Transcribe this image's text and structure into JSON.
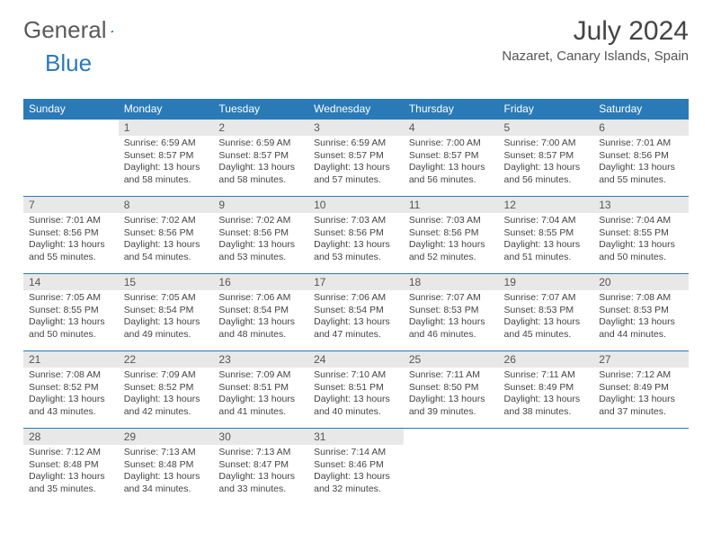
{
  "logo": {
    "text_a": "General",
    "text_b": "Blue"
  },
  "title": "July 2024",
  "location": "Nazaret, Canary Islands, Spain",
  "weekdays": [
    "Sunday",
    "Monday",
    "Tuesday",
    "Wednesday",
    "Thursday",
    "Friday",
    "Saturday"
  ],
  "colors": {
    "header_bg": "#2a7ab8",
    "header_fg": "#ffffff",
    "daynum_bg": "#e8e8e8",
    "border": "#2a7ab8",
    "text": "#444444"
  },
  "fonts": {
    "title_size": 30,
    "location_size": 15,
    "dayhead_size": 12,
    "cell_size": 10.5
  },
  "days": [
    {
      "n": "",
      "sr": "",
      "ss": "",
      "dl": ""
    },
    {
      "n": "1",
      "sr": "6:59 AM",
      "ss": "8:57 PM",
      "dl": "13 hours and 58 minutes."
    },
    {
      "n": "2",
      "sr": "6:59 AM",
      "ss": "8:57 PM",
      "dl": "13 hours and 58 minutes."
    },
    {
      "n": "3",
      "sr": "6:59 AM",
      "ss": "8:57 PM",
      "dl": "13 hours and 57 minutes."
    },
    {
      "n": "4",
      "sr": "7:00 AM",
      "ss": "8:57 PM",
      "dl": "13 hours and 56 minutes."
    },
    {
      "n": "5",
      "sr": "7:00 AM",
      "ss": "8:57 PM",
      "dl": "13 hours and 56 minutes."
    },
    {
      "n": "6",
      "sr": "7:01 AM",
      "ss": "8:56 PM",
      "dl": "13 hours and 55 minutes."
    },
    {
      "n": "7",
      "sr": "7:01 AM",
      "ss": "8:56 PM",
      "dl": "13 hours and 55 minutes."
    },
    {
      "n": "8",
      "sr": "7:02 AM",
      "ss": "8:56 PM",
      "dl": "13 hours and 54 minutes."
    },
    {
      "n": "9",
      "sr": "7:02 AM",
      "ss": "8:56 PM",
      "dl": "13 hours and 53 minutes."
    },
    {
      "n": "10",
      "sr": "7:03 AM",
      "ss": "8:56 PM",
      "dl": "13 hours and 53 minutes."
    },
    {
      "n": "11",
      "sr": "7:03 AM",
      "ss": "8:56 PM",
      "dl": "13 hours and 52 minutes."
    },
    {
      "n": "12",
      "sr": "7:04 AM",
      "ss": "8:55 PM",
      "dl": "13 hours and 51 minutes."
    },
    {
      "n": "13",
      "sr": "7:04 AM",
      "ss": "8:55 PM",
      "dl": "13 hours and 50 minutes."
    },
    {
      "n": "14",
      "sr": "7:05 AM",
      "ss": "8:55 PM",
      "dl": "13 hours and 50 minutes."
    },
    {
      "n": "15",
      "sr": "7:05 AM",
      "ss": "8:54 PM",
      "dl": "13 hours and 49 minutes."
    },
    {
      "n": "16",
      "sr": "7:06 AM",
      "ss": "8:54 PM",
      "dl": "13 hours and 48 minutes."
    },
    {
      "n": "17",
      "sr": "7:06 AM",
      "ss": "8:54 PM",
      "dl": "13 hours and 47 minutes."
    },
    {
      "n": "18",
      "sr": "7:07 AM",
      "ss": "8:53 PM",
      "dl": "13 hours and 46 minutes."
    },
    {
      "n": "19",
      "sr": "7:07 AM",
      "ss": "8:53 PM",
      "dl": "13 hours and 45 minutes."
    },
    {
      "n": "20",
      "sr": "7:08 AM",
      "ss": "8:53 PM",
      "dl": "13 hours and 44 minutes."
    },
    {
      "n": "21",
      "sr": "7:08 AM",
      "ss": "8:52 PM",
      "dl": "13 hours and 43 minutes."
    },
    {
      "n": "22",
      "sr": "7:09 AM",
      "ss": "8:52 PM",
      "dl": "13 hours and 42 minutes."
    },
    {
      "n": "23",
      "sr": "7:09 AM",
      "ss": "8:51 PM",
      "dl": "13 hours and 41 minutes."
    },
    {
      "n": "24",
      "sr": "7:10 AM",
      "ss": "8:51 PM",
      "dl": "13 hours and 40 minutes."
    },
    {
      "n": "25",
      "sr": "7:11 AM",
      "ss": "8:50 PM",
      "dl": "13 hours and 39 minutes."
    },
    {
      "n": "26",
      "sr": "7:11 AM",
      "ss": "8:49 PM",
      "dl": "13 hours and 38 minutes."
    },
    {
      "n": "27",
      "sr": "7:12 AM",
      "ss": "8:49 PM",
      "dl": "13 hours and 37 minutes."
    },
    {
      "n": "28",
      "sr": "7:12 AM",
      "ss": "8:48 PM",
      "dl": "13 hours and 35 minutes."
    },
    {
      "n": "29",
      "sr": "7:13 AM",
      "ss": "8:48 PM",
      "dl": "13 hours and 34 minutes."
    },
    {
      "n": "30",
      "sr": "7:13 AM",
      "ss": "8:47 PM",
      "dl": "13 hours and 33 minutes."
    },
    {
      "n": "31",
      "sr": "7:14 AM",
      "ss": "8:46 PM",
      "dl": "13 hours and 32 minutes."
    },
    {
      "n": "",
      "sr": "",
      "ss": "",
      "dl": ""
    },
    {
      "n": "",
      "sr": "",
      "ss": "",
      "dl": ""
    },
    {
      "n": "",
      "sr": "",
      "ss": "",
      "dl": ""
    }
  ],
  "labels": {
    "sunrise": "Sunrise: ",
    "sunset": "Sunset: ",
    "daylight": "Daylight: "
  }
}
